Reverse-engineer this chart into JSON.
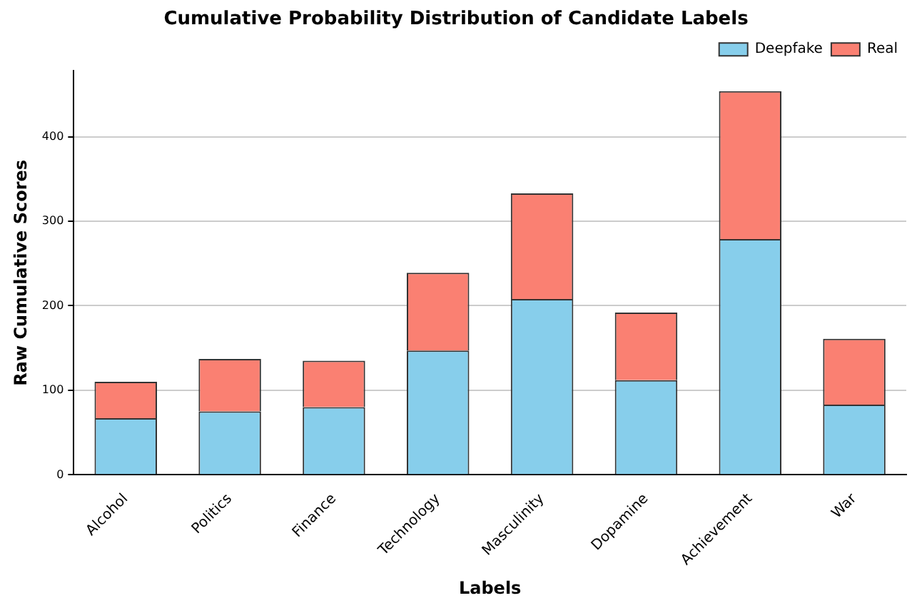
{
  "chart_data": {
    "type": "bar",
    "title": "Cumulative Probability Distribution of Candidate Labels",
    "xlabel": "Labels",
    "ylabel": "Raw Cumulative Scores",
    "categories": [
      "Alcohol",
      "Politics",
      "Finance",
      "Technology",
      "Masculinity",
      "Dopamine",
      "Achievement",
      "War"
    ],
    "series": [
      {
        "name": "Deepfake",
        "color": "#87ceeb",
        "values": [
          67,
          75,
          80,
          147,
          208,
          112,
          279,
          83
        ]
      },
      {
        "name": "Real",
        "color": "#fa8072",
        "values": [
          43,
          62,
          55,
          92,
          125,
          80,
          175,
          78
        ]
      }
    ],
    "stacked": true,
    "ylim": [
      0,
      478
    ],
    "yticks": [
      0,
      100,
      200,
      300,
      400
    ],
    "grid": "y",
    "legend": "top right"
  }
}
